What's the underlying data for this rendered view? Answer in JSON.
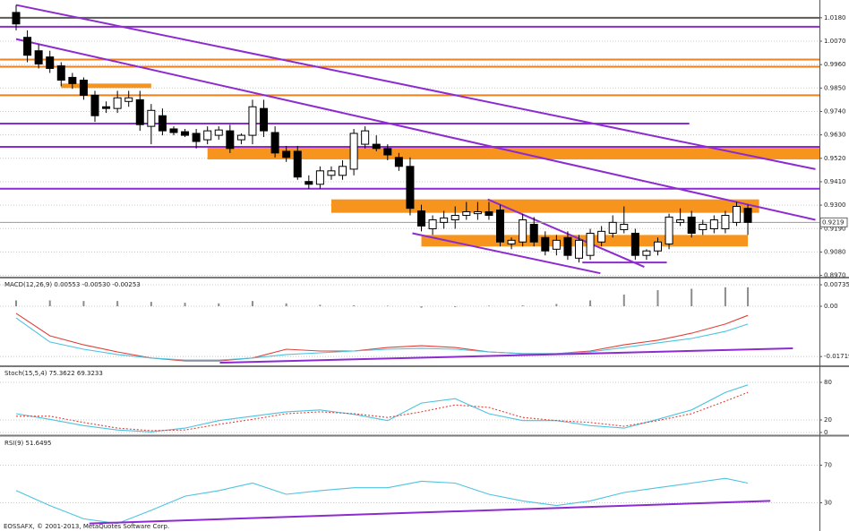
{
  "copyright": "EOSSAFX, © 2001-2013, MetaQuotes Software Corp.",
  "chart_data": [
    {
      "type": "candlestick",
      "ylim": [
        0.8964,
        1.0255
      ],
      "yticks": [
        {
          "value": 1.018,
          "label": "1.0180"
        },
        {
          "value": 1.007,
          "label": "1.0070"
        },
        {
          "value": 0.996,
          "label": "0.9960"
        },
        {
          "value": 0.985,
          "label": "0.9850"
        },
        {
          "value": 0.974,
          "label": "0.9740"
        },
        {
          "value": 0.963,
          "label": "0.9630"
        },
        {
          "value": 0.952,
          "label": "0.9520"
        },
        {
          "value": 0.941,
          "label": "0.9410"
        },
        {
          "value": 0.93,
          "label": "0.9300"
        },
        {
          "value": 0.919,
          "label": "0.9190"
        },
        {
          "value": 0.908,
          "label": "0.9080"
        },
        {
          "value": 0.897,
          "label": "0.8970"
        }
      ],
      "grid": true,
      "up_color": "#ffffff",
      "down_color": "#000000",
      "open": [
        1.0205,
        1.0088,
        1.0025,
        0.9996,
        0.9954,
        0.99,
        0.9887,
        0.9816,
        0.9762,
        0.9754,
        0.9787,
        0.9795,
        0.967,
        0.972,
        0.9658,
        0.9645,
        0.9637,
        0.9607,
        0.9628,
        0.9649,
        0.9607,
        0.9628,
        0.9754,
        0.9641,
        0.9553,
        0.9553,
        0.9411,
        0.9398,
        0.944,
        0.944,
        0.9469,
        0.9586,
        0.9586,
        0.9566,
        0.9524,
        0.9482,
        0.9273,
        0.9189,
        0.9219,
        0.9231,
        0.9252,
        0.926,
        0.9269,
        0.9277,
        0.9118,
        0.9127,
        0.921,
        0.9148,
        0.9093,
        0.9148,
        0.9051,
        0.9064,
        0.9127,
        0.9168,
        0.9185,
        0.9168,
        0.9064,
        0.9085,
        0.9118,
        0.9219,
        0.9244,
        0.9185,
        0.9189,
        0.9189,
        0.9219,
        0.9285
      ],
      "high": [
        1.0239,
        1.0121,
        1.0055,
        1.0025,
        0.9971,
        0.9921,
        0.99,
        0.9837,
        0.9787,
        0.9837,
        0.9837,
        0.9837,
        0.9775,
        0.9754,
        0.967,
        0.9658,
        0.9658,
        0.967,
        0.967,
        0.9678,
        0.9637,
        0.9795,
        0.9795,
        0.967,
        0.9578,
        0.9578,
        0.944,
        0.9482,
        0.9482,
        0.9511,
        0.9658,
        0.967,
        0.9628,
        0.9586,
        0.9545,
        0.9524,
        0.9302,
        0.9252,
        0.9273,
        0.9294,
        0.9315,
        0.9315,
        0.9315,
        0.9302,
        0.9148,
        0.926,
        0.9244,
        0.9177,
        0.916,
        0.9177,
        0.916,
        0.9189,
        0.9202,
        0.9252,
        0.9294,
        0.9189,
        0.9093,
        0.9148,
        0.926,
        0.9285,
        0.9273,
        0.9231,
        0.9252,
        0.9273,
        0.9315,
        0.9302
      ],
      "low": [
        1.0121,
        0.9971,
        0.9942,
        0.9921,
        0.9858,
        0.9846,
        0.9795,
        0.9691,
        0.9733,
        0.9733,
        0.9762,
        0.9649,
        0.9586,
        0.9628,
        0.9628,
        0.962,
        0.9566,
        0.9586,
        0.9607,
        0.9545,
        0.9586,
        0.9586,
        0.962,
        0.9524,
        0.9503,
        0.9419,
        0.9377,
        0.9377,
        0.9419,
        0.9419,
        0.944,
        0.9566,
        0.9553,
        0.9511,
        0.9461,
        0.9252,
        0.9177,
        0.916,
        0.9189,
        0.9189,
        0.9231,
        0.9231,
        0.9231,
        0.9106,
        0.9093,
        0.9106,
        0.9106,
        0.9064,
        0.9064,
        0.9043,
        0.9031,
        0.9043,
        0.9106,
        0.9148,
        0.9168,
        0.9043,
        0.9043,
        0.9064,
        0.9093,
        0.9202,
        0.9148,
        0.916,
        0.9168,
        0.9168,
        0.9202,
        0.916
      ],
      "close": [
        1.0151,
        1.0004,
        0.9963,
        0.9942,
        0.9887,
        0.9871,
        0.9816,
        0.972,
        0.9754,
        0.9804,
        0.9804,
        0.9678,
        0.9745,
        0.9649,
        0.9641,
        0.9628,
        0.9599,
        0.9649,
        0.9653,
        0.9566,
        0.9628,
        0.9762,
        0.9649,
        0.9545,
        0.9524,
        0.9432,
        0.9398,
        0.9461,
        0.9461,
        0.9482,
        0.9637,
        0.9649,
        0.9566,
        0.9536,
        0.9482,
        0.9285,
        0.9202,
        0.9231,
        0.924,
        0.9252,
        0.9269,
        0.9269,
        0.9252,
        0.9127,
        0.9135,
        0.9231,
        0.9127,
        0.9085,
        0.9135,
        0.9064,
        0.9135,
        0.9168,
        0.9177,
        0.9219,
        0.921,
        0.9064,
        0.9085,
        0.9127,
        0.9244,
        0.9231,
        0.9168,
        0.921,
        0.9231,
        0.9252,
        0.9294,
        0.9219
      ],
      "levels": [
        {
          "value": 1.018,
          "color": "#5a5a5a"
        },
        {
          "value": 1.0138,
          "color": "#8e2bd0"
        },
        {
          "value": 0.9984,
          "color": "#f0801c"
        },
        {
          "value": 0.995,
          "color": "#f0801c"
        },
        {
          "value": 0.9816,
          "color": "#f0801c"
        },
        {
          "value": 0.9683,
          "color": "#8e2bd0",
          "end": 59.8
        },
        {
          "value": 0.9574,
          "color": "#8e2bd0"
        },
        {
          "value": 0.9377,
          "color": "#8e2bd0"
        }
      ],
      "zones": [
        {
          "from": 0.9871,
          "to": 0.985,
          "start": 4,
          "end": 12,
          "color": "#f7941d"
        },
        {
          "from": 0.9574,
          "to": 0.9515,
          "start": 17,
          "end": 71.4,
          "color": "#f7941d"
        },
        {
          "from": 0.9327,
          "to": 0.9264,
          "start": 28,
          "end": 66,
          "color": "#f7941d"
        },
        {
          "from": 0.916,
          "to": 0.9106,
          "start": 36,
          "end": 65,
          "color": "#f7941d"
        }
      ],
      "trendlines": [
        {
          "x": [
            0,
            71
          ],
          "y": [
            1.024,
            0.9469
          ],
          "color": "#8e2bd0"
        },
        {
          "x": [
            0,
            71
          ],
          "y": [
            1.008,
            0.9231
          ],
          "color": "#8e2bd0"
        },
        {
          "x": [
            35.2,
            51.9
          ],
          "y": [
            0.9168,
            0.898
          ],
          "color": "#8e2bd0"
        },
        {
          "x": [
            41.9,
            55.8
          ],
          "y": [
            0.9327,
            0.901
          ],
          "color": "#8e2bd0"
        },
        {
          "x": [
            50.3,
            57.8
          ],
          "y": [
            0.9031,
            0.9031
          ],
          "color": "#8e2bd0"
        }
      ]
    },
    {
      "type": "macd",
      "title": "MACD(12,26,9) 0.00553 -0.00530 -0.00253",
      "ylim": [
        -0.0202,
        0.0095
      ],
      "yticks": [
        0.00735,
        {
          "value": 0,
          "label": "0.00"
        },
        -0.01719
      ],
      "grid": true,
      "x": [
        0,
        3,
        6,
        9,
        12,
        15,
        18,
        21,
        24,
        27,
        30,
        33,
        36,
        39,
        42,
        45,
        48,
        51,
        54,
        57,
        60,
        63,
        65
      ],
      "histogram": {
        "color": "#8c8c8c",
        "values": [
          0.002,
          0.002,
          0.0018,
          0.0018,
          0.0015,
          0.0012,
          0.001,
          0.0018,
          0.001,
          0.0005,
          0.0003,
          0.0002,
          -0.0005,
          -0.0003,
          0.0002,
          0.0003,
          0.0008,
          0.002,
          0.004,
          0.0055,
          0.006,
          0.0065,
          0.0065
        ]
      },
      "series": [
        {
          "color": "#e0403a",
          "values": [
            -0.0024,
            -0.0101,
            -0.0132,
            -0.0156,
            -0.0177,
            -0.0187,
            -0.0187,
            -0.0177,
            -0.0147,
            -0.0153,
            -0.0153,
            -0.0141,
            -0.0135,
            -0.0141,
            -0.0156,
            -0.0162,
            -0.0162,
            -0.0153,
            -0.0132,
            -0.0116,
            -0.0092,
            -0.0061,
            -0.0031
          ]
        },
        {
          "color": "#4cc3e0",
          "values": [
            -0.004,
            -0.0122,
            -0.0147,
            -0.0165,
            -0.0177,
            -0.0184,
            -0.0184,
            -0.0177,
            -0.0165,
            -0.0159,
            -0.0153,
            -0.0147,
            -0.0144,
            -0.0147,
            -0.0156,
            -0.0162,
            -0.0162,
            -0.0156,
            -0.0141,
            -0.0125,
            -0.011,
            -0.0086,
            -0.0061
          ]
        }
      ],
      "trendlines": [
        {
          "x": [
            18.1,
            69
          ],
          "y": [
            -0.0193,
            -0.0144
          ],
          "color": "#8e2bd0"
        }
      ]
    },
    {
      "type": "line",
      "title": "Stoch(15,5,4) 75.3622 69.3233",
      "ylim": [
        -2.9,
        104.3
      ],
      "yticks": [
        80,
        20,
        0
      ],
      "grid": true,
      "x": [
        0,
        3,
        6,
        9,
        12,
        15,
        18,
        21,
        24,
        27,
        30,
        33,
        36,
        39,
        42,
        45,
        48,
        51,
        54,
        57,
        60,
        63,
        65
      ],
      "series": [
        {
          "color": "#4cc3e0",
          "values": [
            30,
            21,
            11,
            4,
            1,
            7,
            19,
            26,
            33,
            36,
            29,
            19,
            47,
            54,
            30,
            19,
            19,
            11,
            7,
            21,
            36,
            64,
            76
          ]
        },
        {
          "color": "#e0403a",
          "dashed": true,
          "values": [
            26,
            26,
            16,
            7,
            3,
            4,
            13,
            21,
            30,
            33,
            30,
            24,
            33,
            44,
            40,
            24,
            19,
            16,
            10,
            19,
            30,
            50,
            64
          ]
        }
      ],
      "trendlines": []
    },
    {
      "type": "line",
      "title": "RSI(9) 51.6495",
      "ylim": [
        0,
        100
      ],
      "yticks": [
        70,
        30
      ],
      "grid": true,
      "x": [
        0,
        3,
        6,
        9,
        12,
        15,
        18,
        21,
        24,
        27,
        30,
        33,
        36,
        39,
        42,
        45,
        48,
        51,
        54,
        57,
        60,
        63,
        65
      ],
      "series": [
        {
          "color": "#4cc3e0",
          "values": [
            43,
            27,
            13,
            8,
            22,
            37,
            43,
            51,
            39,
            43,
            46,
            46,
            53,
            51,
            39,
            32,
            27,
            32,
            41,
            46,
            51,
            56,
            51
          ]
        }
      ],
      "trendlines": [
        {
          "x": [
            6.5,
            67
          ],
          "y": [
            8,
            32
          ],
          "color": "#8e2bd0"
        }
      ]
    }
  ]
}
